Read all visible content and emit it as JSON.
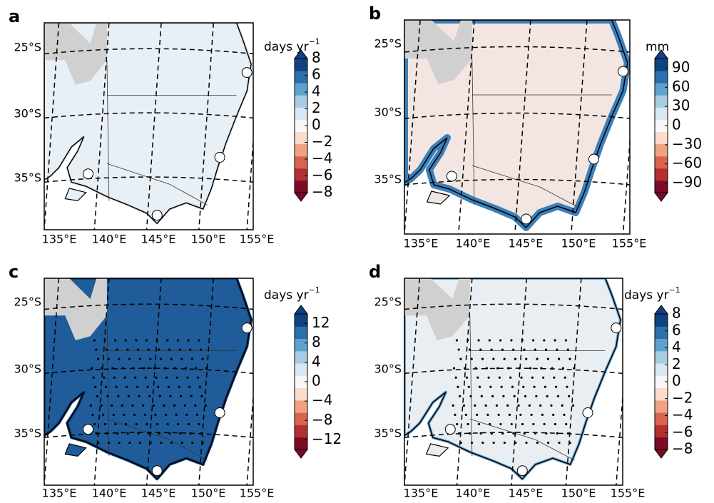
{
  "panels": [
    {
      "label": "a",
      "unit": "days yr",
      "unit_exponent": "−1",
      "colorbar_ticks": [
        8,
        6,
        4,
        2,
        0,
        {
          "value": -2,
          "label": "−2"
        },
        {
          "value": -4,
          "label": "−4"
        },
        {
          "value": -6,
          "label": "−6"
        },
        {
          "value": -8,
          "label": "−8"
        }
      ],
      "colorbar_lim": [
        -8,
        8
      ],
      "land_color": "#e8eff5",
      "coast_color": "#dfe9f2",
      "lat_labels": [
        "25°S",
        "30°S",
        "35°S"
      ],
      "lon_labels": [
        "135°E",
        "140°E",
        "145°E",
        "150°E",
        "155°E"
      ]
    },
    {
      "label": "b",
      "unit": "mm",
      "colorbar_ticks": [
        90,
        60,
        30,
        0,
        {
          "value": -30,
          "label": "−30"
        },
        {
          "value": -60,
          "label": "−60"
        },
        {
          "value": -90,
          "label": "−90"
        }
      ],
      "colorbar_lim": [
        -105,
        105
      ],
      "land_color": "#f3e6e2",
      "coast_color": "#3d7fb8",
      "lat_labels": [
        "25°S",
        "30°S",
        "35°S"
      ],
      "lon_labels": [
        "135°E",
        "140°E",
        "145°E",
        "150°E",
        "155°E"
      ]
    },
    {
      "label": "c",
      "unit": "days yr",
      "unit_exponent": "−1",
      "colorbar_ticks": [
        12,
        8,
        4,
        0,
        {
          "value": -4,
          "label": "−4"
        },
        {
          "value": -8,
          "label": "−8"
        },
        {
          "value": -12,
          "label": "−12"
        }
      ],
      "colorbar_lim": [
        -14,
        14
      ],
      "land_color": "#1f5c99",
      "coast_color": "#0d3b70",
      "lat_labels": [
        "25°S",
        "30°S",
        "35°S"
      ],
      "lon_labels": [
        "135°E",
        "140°E",
        "145°E",
        "150°E",
        "155°E"
      ]
    },
    {
      "label": "d",
      "unit": "days yr",
      "unit_exponent": "−1",
      "colorbar_ticks": [
        8,
        6,
        4,
        2,
        0,
        {
          "value": -2,
          "label": "−2"
        },
        {
          "value": -4,
          "label": "−4"
        },
        {
          "value": -6,
          "label": "−6"
        },
        {
          "value": -8,
          "label": "−8"
        }
      ],
      "colorbar_lim": [
        -8,
        8
      ],
      "land_color": "#e9eef3",
      "coast_color": "#6aa6d0",
      "lat_labels": [
        "25°S",
        "30°S",
        "35°S"
      ],
      "lon_labels": [
        "135°E",
        "140°E",
        "145°E",
        "150°E",
        "155°E"
      ]
    }
  ],
  "colorbar_colors": [
    "#7d0a25",
    "#b52e32",
    "#d8644f",
    "#f0a383",
    "#fbdccb",
    "#f7f7f7",
    "#d7e8f2",
    "#a6cde3",
    "#5fa2cd",
    "#2b6fae",
    "#0f437f"
  ]
}
